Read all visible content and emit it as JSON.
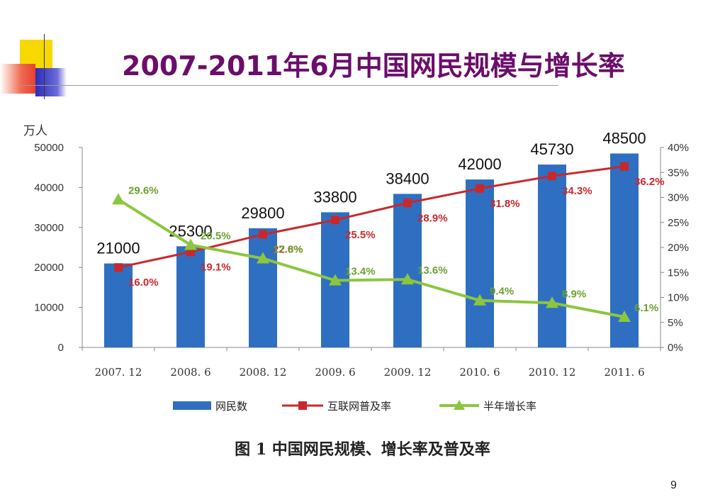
{
  "slide": {
    "title": "2007-2011年6月中国网民规模与增长率",
    "figure_caption": "图 1 中国网民规模、增长率及普及率",
    "page_number": "9"
  },
  "colors": {
    "title": "#6b0d6b",
    "bars": "#2f6fc1",
    "penetration": "#c8282c",
    "growth": "#8cc63f",
    "growth_label": "#6aa22e"
  },
  "chart_data": {
    "type": "bar",
    "categories": [
      "2007. 12",
      "2008. 6",
      "2008. 12",
      "2009. 6",
      "2009. 12",
      "2010. 6",
      "2010. 12",
      "2011. 6"
    ],
    "series": [
      {
        "name": "网民数",
        "type": "bar",
        "axis": "left",
        "values": [
          21000,
          25300,
          29800,
          33800,
          38400,
          42000,
          45730,
          48500
        ]
      },
      {
        "name": "互联网普及率",
        "type": "line",
        "axis": "right",
        "values": [
          16.0,
          19.1,
          22.6,
          25.5,
          28.9,
          31.8,
          34.3,
          36.2
        ],
        "labels": [
          "16.0%",
          "19.1%",
          "22.6%",
          "25.5%",
          "28.9%",
          "31.8%",
          "34.3%",
          "36.2%"
        ]
      },
      {
        "name": "半年增长率",
        "type": "line",
        "axis": "right",
        "values": [
          29.6,
          20.5,
          17.8,
          13.4,
          13.6,
          9.4,
          8.9,
          6.1
        ],
        "labels": [
          "29.6%",
          "20.5%",
          "17.8%",
          "13.4%",
          "13.6%",
          "9.4%",
          "8.9%",
          "6.1%"
        ]
      }
    ],
    "y_left": {
      "unit": "万人",
      "range": [
        0,
        50000
      ],
      "ticks": [
        "0",
        "10000",
        "20000",
        "30000",
        "40000",
        "50000"
      ]
    },
    "y_right": {
      "range": [
        0,
        40
      ],
      "ticks": [
        "0%",
        "5%",
        "10%",
        "15%",
        "20%",
        "25%",
        "30%",
        "35%",
        "40%"
      ]
    },
    "grid": false,
    "legend_position": "bottom"
  }
}
